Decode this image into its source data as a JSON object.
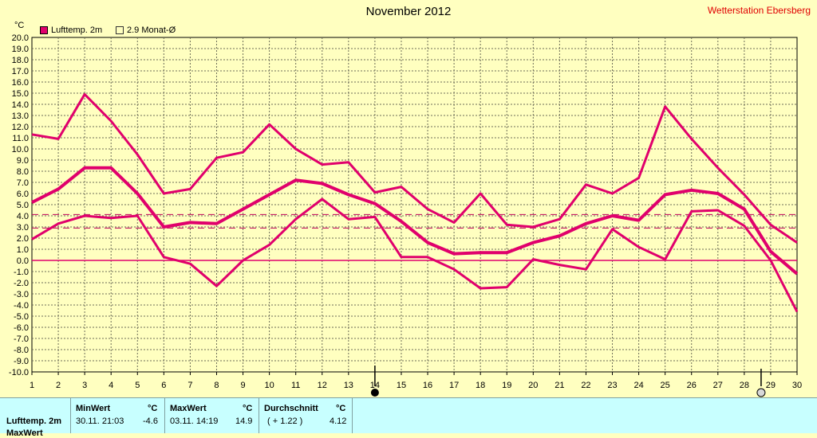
{
  "header": {
    "title": "November 2012",
    "station": "Wetterstation Ebersberg",
    "unit": "°C"
  },
  "legend": {
    "series1": "Lufttemp. 2m",
    "series2": "2.9 Monat-Ø"
  },
  "colors": {
    "series": "#e0006c",
    "grid": "#6e6e58",
    "background": "#ffffc0",
    "footer": "#c8ffff",
    "station": "#e00000"
  },
  "markers": {
    "new_moon_day": 14,
    "full_moon_day": 29
  },
  "chart_data": {
    "type": "line",
    "title": "November 2012",
    "ylabel": "°C",
    "x": [
      1,
      2,
      3,
      4,
      5,
      6,
      7,
      8,
      9,
      10,
      11,
      12,
      13,
      14,
      15,
      16,
      17,
      18,
      19,
      20,
      21,
      22,
      23,
      24,
      25,
      26,
      27,
      28,
      29,
      30
    ],
    "xlim": [
      1,
      30
    ],
    "ylim": [
      -10,
      20
    ],
    "yticks": [
      20.0,
      19.0,
      18.0,
      17.0,
      16.0,
      15.0,
      14.0,
      13.0,
      12.0,
      11.0,
      10.0,
      9.0,
      8.0,
      7.0,
      6.0,
      5.0,
      4.0,
      3.0,
      2.0,
      1.0,
      0.0,
      -1.0,
      -2.0,
      -3.0,
      -4.0,
      -5.0,
      -6.0,
      -7.0,
      -8.0,
      -9.0,
      -10.0
    ],
    "grid": true,
    "series": [
      {
        "name": "max",
        "values": [
          11.3,
          10.9,
          14.9,
          12.5,
          9.5,
          6.0,
          6.4,
          9.2,
          9.7,
          12.2,
          10.0,
          8.6,
          8.8,
          6.1,
          6.6,
          4.6,
          3.4,
          6.0,
          3.2,
          3.0,
          3.7,
          6.8,
          6.0,
          7.4,
          13.8,
          10.9,
          8.3,
          5.9,
          3.2,
          1.6
        ]
      },
      {
        "name": "mean",
        "values": [
          5.2,
          6.4,
          8.3,
          8.3,
          6.0,
          3.0,
          3.4,
          3.3,
          4.6,
          5.9,
          7.2,
          6.9,
          5.9,
          5.1,
          3.5,
          1.6,
          0.6,
          0.7,
          0.7,
          1.6,
          2.2,
          3.3,
          4.0,
          3.6,
          5.9,
          6.3,
          6.0,
          4.6,
          0.8,
          -1.2
        ]
      },
      {
        "name": "min",
        "values": [
          1.9,
          3.3,
          4.0,
          3.8,
          4.0,
          0.3,
          -0.3,
          -2.3,
          0.0,
          1.4,
          3.7,
          5.5,
          3.7,
          3.9,
          0.3,
          0.3,
          -0.8,
          -2.5,
          -2.4,
          0.1,
          -0.4,
          -0.8,
          2.8,
          1.2,
          0.1,
          4.4,
          4.5,
          3.1,
          0.0,
          -4.6
        ]
      }
    ],
    "reference_lines": [
      {
        "name": "2.9 Monat-Ø",
        "value": 2.9
      },
      {
        "name": "avg",
        "value": 4.12
      }
    ]
  },
  "footer": {
    "row_label": "Lufttemp. 2m",
    "row_label2": "MaxWert",
    "min_head": "MinWert",
    "min_unit": "°C",
    "min_time": "30.11.  21:03",
    "min_value": "-4.6",
    "max_head": "MaxWert",
    "max_unit": "°C",
    "max_time": "03.11.  14:19",
    "max_value": "14.9",
    "avg_head": "Durchschnitt",
    "avg_unit": "°C",
    "avg_delta": "( + 1.22 )",
    "avg_value": "4.12"
  }
}
